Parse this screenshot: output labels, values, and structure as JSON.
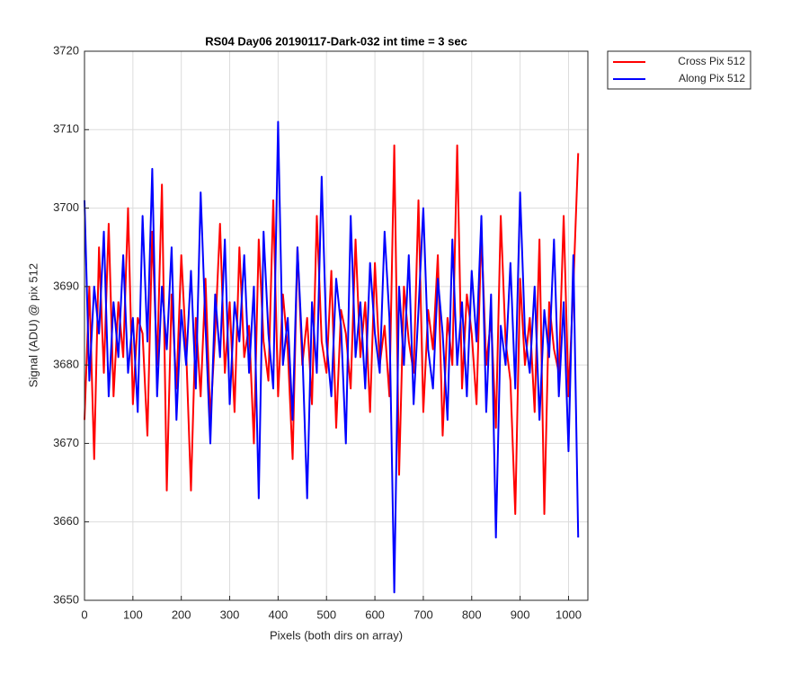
{
  "chart_data": {
    "type": "line",
    "title": "RS04 Day06 20190117-Dark-032 int time = 3 sec",
    "xlabel": "Pixels (both dirs on array)",
    "ylabel": "Signal (ADU) @ pix 512",
    "x": [
      0,
      10,
      20,
      30,
      40,
      50,
      60,
      70,
      80,
      90,
      100,
      110,
      120,
      130,
      140,
      150,
      160,
      170,
      180,
      190,
      200,
      210,
      220,
      230,
      240,
      250,
      260,
      270,
      280,
      290,
      300,
      310,
      320,
      330,
      340,
      350,
      360,
      370,
      380,
      390,
      400,
      410,
      420,
      430,
      440,
      450,
      460,
      470,
      480,
      490,
      500,
      510,
      520,
      530,
      540,
      550,
      560,
      570,
      580,
      590,
      600,
      610,
      620,
      630,
      640,
      650,
      660,
      670,
      680,
      690,
      700,
      710,
      720,
      730,
      740,
      750,
      760,
      770,
      780,
      790,
      800,
      810,
      820,
      830,
      840,
      850,
      860,
      870,
      880,
      890,
      900,
      910,
      920,
      930,
      940,
      950,
      960,
      970,
      980,
      990,
      1000,
      1010,
      1020
    ],
    "series": [
      {
        "name": "Cross Pix 512",
        "color": "#ff0000",
        "values": [
          3673,
          3690,
          3668,
          3695,
          3679,
          3698,
          3676,
          3688,
          3681,
          3700,
          3675,
          3686,
          3684,
          3671,
          3697,
          3680,
          3703,
          3664,
          3689,
          3677,
          3694,
          3682,
          3664,
          3686,
          3676,
          3691,
          3673,
          3684,
          3698,
          3679,
          3688,
          3674,
          3695,
          3681,
          3685,
          3670,
          3696,
          3683,
          3678,
          3701,
          3676,
          3689,
          3682,
          3668,
          3695,
          3680,
          3686,
          3675,
          3699,
          3683,
          3679,
          3692,
          3672,
          3687,
          3684,
          3677,
          3696,
          3681,
          3688,
          3674,
          3693,
          3680,
          3685,
          3676,
          3708,
          3666,
          3690,
          3683,
          3679,
          3701,
          3674,
          3687,
          3682,
          3694,
          3671,
          3686,
          3680,
          3708,
          3677,
          3689,
          3684,
          3675,
          3697,
          3680,
          3686,
          3672,
          3699,
          3683,
          3678,
          3661,
          3691,
          3680,
          3686,
          3674,
          3696,
          3661,
          3688,
          3682,
          3679,
          3699,
          3676,
          3690,
          3707
        ]
      },
      {
        "name": "Along Pix 512",
        "color": "#0000ff",
        "values": [
          3701,
          3678,
          3690,
          3684,
          3697,
          3676,
          3688,
          3681,
          3694,
          3679,
          3686,
          3674,
          3699,
          3683,
          3705,
          3676,
          3690,
          3682,
          3695,
          3673,
          3687,
          3680,
          3692,
          3677,
          3702,
          3685,
          3670,
          3689,
          3681,
          3696,
          3675,
          3688,
          3683,
          3694,
          3679,
          3690,
          3663,
          3697,
          3684,
          3677,
          3711,
          3680,
          3686,
          3673,
          3695,
          3682,
          3663,
          3688,
          3679,
          3704,
          3683,
          3676,
          3691,
          3685,
          3670,
          3699,
          3681,
          3688,
          3677,
          3693,
          3684,
          3679,
          3697,
          3686,
          3651,
          3690,
          3680,
          3694,
          3675,
          3687,
          3700,
          3682,
          3677,
          3691,
          3684,
          3673,
          3696,
          3680,
          3688,
          3676,
          3692,
          3683,
          3699,
          3674,
          3689,
          3658,
          3685,
          3680,
          3693,
          3677,
          3702,
          3684,
          3679,
          3690,
          3673,
          3687,
          3681,
          3696,
          3676,
          3688,
          3669,
          3694,
          3658
        ]
      }
    ],
    "xlim": [
      0,
      1040
    ],
    "xticks": [
      0,
      100,
      200,
      300,
      400,
      500,
      600,
      700,
      800,
      900,
      1000
    ],
    "ylim": [
      3650,
      3720
    ],
    "yticks": [
      3650,
      3660,
      3670,
      3680,
      3690,
      3700,
      3710,
      3720
    ],
    "grid": true,
    "legend": "northeastoutside"
  }
}
